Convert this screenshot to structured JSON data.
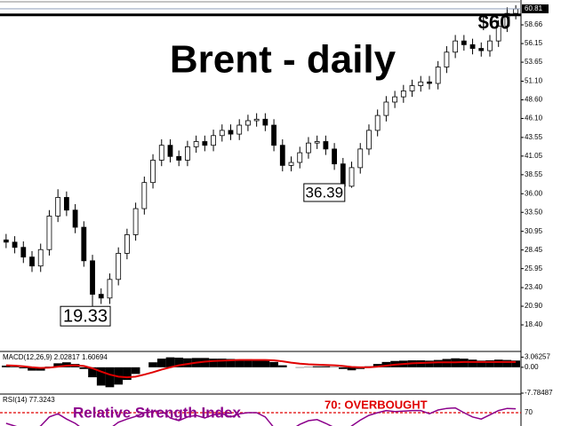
{
  "chart_data": [
    {
      "type": "candlestick",
      "title": "Brent - daily",
      "open": [
        29.8,
        29.5,
        28.8,
        27.5,
        26.3,
        28.5,
        33.0,
        35.5,
        33.8,
        31.5,
        27.0,
        22.5,
        22.0,
        24.5,
        28.0,
        30.5,
        34.0,
        37.5,
        40.5,
        42.5,
        41.0,
        40.5,
        42.3,
        43.0,
        42.5,
        43.8,
        44.5,
        44.0,
        45.2,
        45.8,
        46.0,
        45.2,
        42.5,
        39.8,
        40.2,
        41.5,
        42.8,
        43.0,
        42.0,
        40.0,
        37.0,
        39.5,
        42.0,
        44.5,
        46.5,
        48.3,
        49.0,
        49.8,
        50.5,
        51.0,
        50.8,
        53.0,
        55.0,
        56.5,
        56.0,
        55.5,
        55.2,
        56.5,
        58.5,
        60.2
      ],
      "high": [
        30.6,
        30.3,
        29.6,
        28.3,
        29.3,
        33.8,
        36.6,
        36.3,
        34.6,
        32.3,
        27.8,
        23.3,
        25.3,
        28.8,
        31.3,
        34.8,
        38.3,
        41.3,
        43.3,
        43.3,
        41.8,
        43.1,
        43.8,
        43.8,
        44.6,
        45.3,
        45.3,
        46.0,
        46.6,
        46.8,
        46.8,
        46.0,
        43.3,
        41.0,
        42.3,
        43.6,
        43.8,
        43.8,
        42.8,
        40.8,
        40.3,
        42.8,
        45.3,
        47.3,
        49.1,
        49.8,
        50.6,
        51.3,
        51.8,
        51.8,
        53.8,
        55.8,
        57.3,
        57.3,
        56.8,
        56.3,
        57.3,
        59.3,
        61.0,
        61.3
      ],
      "low": [
        28.7,
        28.0,
        26.7,
        25.5,
        25.5,
        27.7,
        32.2,
        33.0,
        30.7,
        26.2,
        19.33,
        21.2,
        21.2,
        23.7,
        27.2,
        29.7,
        33.2,
        36.7,
        39.7,
        40.2,
        39.7,
        39.7,
        41.5,
        41.7,
        41.7,
        43.0,
        43.2,
        43.2,
        44.4,
        45.0,
        44.4,
        41.7,
        39.0,
        39.0,
        39.4,
        40.7,
        42.0,
        41.2,
        39.2,
        36.39,
        36.8,
        38.7,
        41.2,
        43.7,
        45.7,
        47.5,
        48.2,
        49.0,
        49.7,
        50.0,
        50.0,
        52.2,
        54.2,
        55.2,
        54.7,
        54.4,
        54.4,
        55.7,
        57.7,
        59.4
      ],
      "close": [
        29.5,
        28.8,
        27.5,
        26.3,
        28.5,
        33.0,
        35.5,
        33.8,
        31.5,
        27.0,
        22.5,
        22.0,
        24.5,
        28.0,
        30.5,
        34.0,
        37.5,
        40.5,
        42.5,
        41.0,
        40.5,
        42.3,
        43.0,
        42.5,
        43.8,
        44.5,
        44.0,
        45.2,
        45.8,
        46.0,
        45.2,
        42.5,
        39.8,
        40.2,
        41.5,
        42.8,
        43.0,
        42.0,
        40.0,
        37.0,
        39.5,
        42.0,
        44.5,
        46.5,
        48.3,
        49.0,
        49.8,
        50.5,
        51.0,
        50.8,
        53.0,
        55.0,
        56.5,
        56.0,
        55.5,
        55.2,
        56.5,
        58.5,
        60.2,
        60.81
      ],
      "up_color": "#ffffff",
      "down_color": "#000000",
      "ylim": [
        14.95,
        61.52
      ],
      "yticks": [
        58.66,
        56.15,
        53.65,
        {
          "value": 51.1,
          "label": "51.10"
        },
        {
          "value": 48.6,
          "label": "48.60"
        },
        {
          "value": 46.1,
          "label": "46.10"
        },
        43.55,
        41.05,
        38.55,
        {
          "value": 36,
          "label": "36.00"
        },
        {
          "value": 33.5,
          "label": "33.50"
        },
        30.95,
        28.45,
        25.95,
        {
          "value": 23.4,
          "label": "23.40"
        },
        {
          "value": 20.9,
          "label": "20.90"
        },
        {
          "value": 18.4,
          "label": "18.40"
        }
      ],
      "level": {
        "value": 60,
        "label": "$60"
      }
    },
    {
      "type": "bar",
      "title": "MACD(12,26,9) 2.02817 1.60694",
      "values": [
        0.5,
        0.2,
        -0.3,
        -1.0,
        -1.0,
        0.2,
        1.2,
        1.5,
        1.0,
        -0.5,
        -3.0,
        -5.5,
        -6.0,
        -5.2,
        -3.8,
        -2.0,
        0.0,
        1.5,
        2.6,
        3.0,
        2.9,
        2.7,
        2.8,
        2.8,
        2.6,
        2.6,
        2.5,
        2.4,
        2.4,
        2.3,
        2.2,
        1.6,
        0.6,
        0.0,
        -0.1,
        0.1,
        0.3,
        0.3,
        0.1,
        -0.5,
        -0.9,
        -0.5,
        0.3,
        1.0,
        1.6,
        1.9,
        2.0,
        2.1,
        2.1,
        2.0,
        2.2,
        2.5,
        2.7,
        2.6,
        2.3,
        2.0,
        2.1,
        2.3,
        2.2,
        2.02817
      ],
      "signal": [
        0.6,
        0.5,
        0.3,
        0.0,
        -0.2,
        -0.1,
        0.2,
        0.5,
        0.6,
        0.4,
        -0.3,
        -1.3,
        -2.2,
        -2.8,
        -3.0,
        -2.8,
        -2.2,
        -1.5,
        -0.7,
        0.0,
        0.6,
        1.0,
        1.4,
        1.7,
        1.9,
        2.0,
        2.1,
        2.2,
        2.2,
        2.2,
        2.2,
        2.1,
        1.8,
        1.4,
        1.1,
        0.9,
        0.8,
        0.7,
        0.6,
        0.4,
        0.1,
        0.0,
        0.0,
        0.2,
        0.5,
        0.8,
        1.0,
        1.2,
        1.3,
        1.4,
        1.5,
        1.5,
        1.5,
        1.6,
        1.6,
        1.6,
        1.6,
        1.6,
        1.6,
        1.60694
      ],
      "color": "#000000",
      "signal_color": "#e00000",
      "ylim": [
        -7.78487,
        4.5
      ],
      "yticks": [
        3.06257,
        {
          "value": 0,
          "label": "0.00"
        },
        -7.78487
      ]
    },
    {
      "type": "line",
      "title": "RSI(14) 77.3243",
      "values": [
        50,
        45,
        40,
        35,
        45,
        62,
        68,
        58,
        50,
        38,
        25,
        28,
        40,
        52,
        58,
        63,
        70,
        72,
        74,
        60,
        55,
        62,
        65,
        60,
        66,
        68,
        62,
        68,
        70,
        70,
        62,
        42,
        32,
        38,
        48,
        55,
        57,
        50,
        42,
        32,
        45,
        56,
        65,
        70,
        74,
        72,
        73,
        74,
        74,
        68,
        75,
        78,
        79,
        70,
        62,
        58,
        66,
        74,
        78,
        77.3243
      ],
      "color": "#8b008b",
      "level_color": "#e00000",
      "ylim": [
        0,
        100
      ],
      "yticks": [
        70
      ],
      "annotations": [
        "70: OVERBOUGHT",
        "Relative Strength Index"
      ]
    }
  ]
}
